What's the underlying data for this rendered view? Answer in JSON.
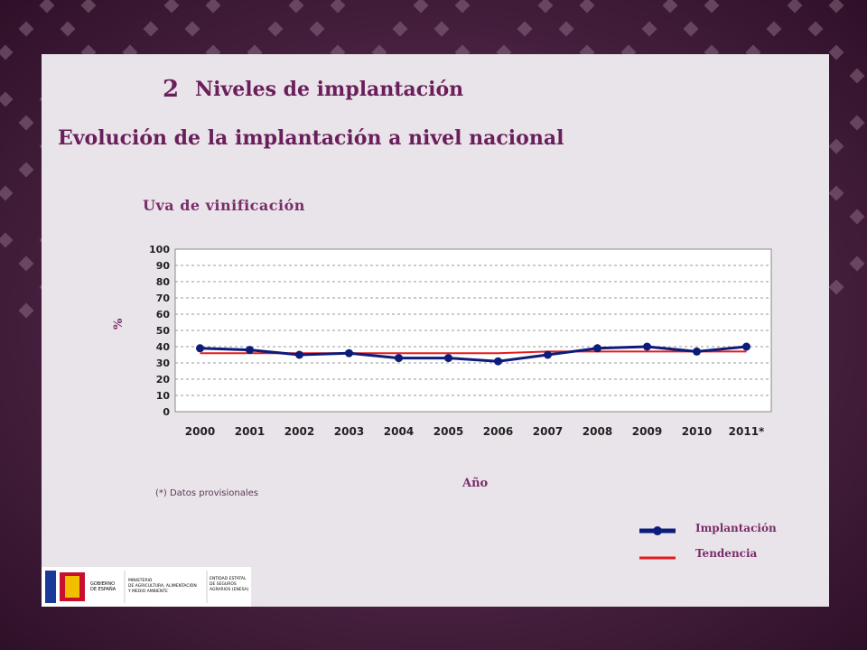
{
  "header": {
    "section_number": "2",
    "title": "Niveles de implantación",
    "subtitle": "Evolución de la implantación a nivel nacional"
  },
  "footnote": "(*) Datos provisionales",
  "logos": {
    "gobierno": "GOBIERNO DE ESPAÑA",
    "ministerio": "MINISTERIO DE AGRICULTURA, ALIMENTACIÓN Y MEDIO AMBIENTE",
    "entidad": "ENTIDAD ESTATAL DE SEGUROS AGRARIOS (ENESA)"
  },
  "colors": {
    "background": "#4a1f3f",
    "panel": "#e9e4e9",
    "implantacion": "#0c1c7a",
    "tendencia": "#e31b1b",
    "accent_text": "#6a1f5b"
  },
  "chart_data": {
    "type": "line",
    "title": "Uva de vinificación",
    "xlabel": "Año",
    "ylabel": "%",
    "categories": [
      "2000",
      "2001",
      "2002",
      "2003",
      "2004",
      "2005",
      "2006",
      "2007",
      "2008",
      "2009",
      "2010",
      "2011*"
    ],
    "ylim": [
      0,
      100
    ],
    "yticks": [
      0,
      10,
      20,
      30,
      40,
      50,
      60,
      70,
      80,
      90,
      100
    ],
    "grid": true,
    "legend_position": "bottom-right",
    "series": [
      {
        "name": "Implantación",
        "values": [
          39,
          38,
          35,
          36,
          33,
          33,
          31,
          35,
          39,
          40,
          37,
          40
        ]
      },
      {
        "name": "Tendencia",
        "values": [
          36,
          36,
          36,
          36,
          36,
          36,
          36,
          37,
          37,
          37,
          37,
          37
        ]
      }
    ]
  }
}
